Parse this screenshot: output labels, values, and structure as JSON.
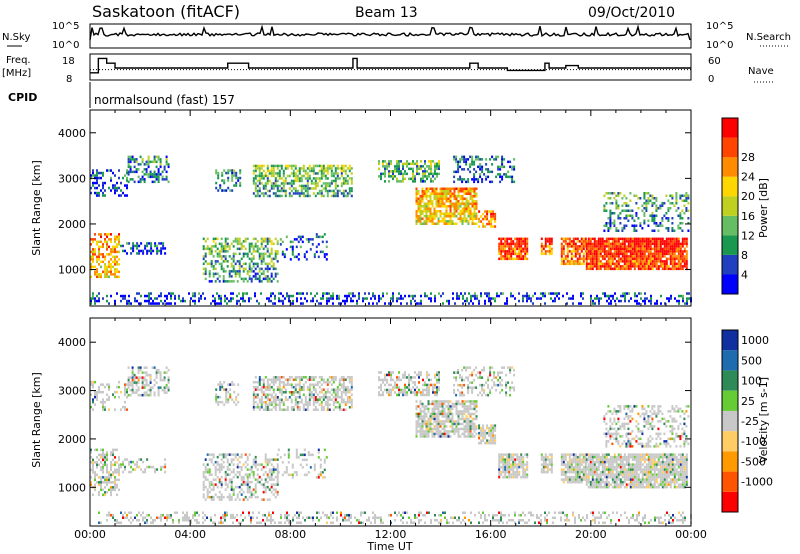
{
  "header": {
    "station": "Saskatoon (fitACF)",
    "beam": "Beam 13",
    "date": "09/Oct/2010"
  },
  "status_panels": {
    "nsky": {
      "label": "N.Sky",
      "ticks": [
        "10^5",
        "10^0"
      ]
    },
    "nsearch": {
      "label": "N.Search",
      "ticks": [
        "10^5",
        "10^0"
      ]
    },
    "freq": {
      "label_line1": "Freq.",
      "label_line2": "[MHz]",
      "ticks": [
        "18",
        "8"
      ]
    },
    "nave": {
      "label": "Nave",
      "ticks": [
        "60",
        "0"
      ]
    },
    "cpid": {
      "label": "CPID",
      "value": "normalsound (fast) 157"
    }
  },
  "colors": {
    "power": [
      "#0000ff",
      "#2040c0",
      "#1a9850",
      "#66bd63",
      "#c0d020",
      "#ffd700",
      "#ff8c00",
      "#ff4500",
      "#ff0000"
    ],
    "velocity": [
      "#ff0000",
      "#ff5500",
      "#ff9900",
      "#ffcc66",
      "#c8c8c8",
      "#66cc33",
      "#2e8b57",
      "#1e6bb0",
      "#1030a0"
    ]
  },
  "chart_data": [
    {
      "type": "line",
      "title": "Freq. [MHz] / Nave",
      "x": [
        "00:00",
        "00:20",
        "00:40",
        "01:00",
        "05:20",
        "05:30",
        "06:20",
        "10:20",
        "10:30",
        "10:40",
        "15:00",
        "15:10",
        "15:30",
        "16:20",
        "16:40",
        "18:10",
        "18:20",
        "19:00",
        "19:30",
        "23:50"
      ],
      "series": [
        {
          "name": "Freq.",
          "values": [
            11,
            17,
            15,
            13,
            13,
            15,
            13,
            13,
            17,
            13,
            13,
            15,
            13,
            13,
            12,
            15,
            13,
            14,
            13,
            13
          ]
        },
        {
          "name": "Nave",
          "values": [
            26,
            26,
            26,
            26,
            26,
            26,
            26,
            26,
            26,
            26,
            26,
            26,
            26,
            26,
            26,
            26,
            26,
            26,
            26,
            26
          ]
        }
      ],
      "ylim": [
        8,
        18
      ]
    },
    {
      "type": "heatmap",
      "title": "Power [dB]",
      "xlabel": "Time UT",
      "ylabel": "Slant Range [km]",
      "x_ticks": [
        "00:00",
        "04:00",
        "08:00",
        "12:00",
        "16:00",
        "20:00",
        "00:00"
      ],
      "y_ticks": [
        1000,
        2000,
        3000,
        4000
      ],
      "ylim": [
        200,
        4500
      ],
      "colorbar_label": "Power [dB]",
      "colorbar_ticks": [
        4,
        8,
        12,
        16,
        20,
        24,
        28
      ]
    },
    {
      "type": "heatmap",
      "title": "Velocity [m s-1]",
      "xlabel": "Time UT",
      "ylabel": "Slant Range [km]",
      "x_ticks": [
        "00:00",
        "04:00",
        "08:00",
        "12:00",
        "16:00",
        "20:00",
        "00:00"
      ],
      "y_ticks": [
        1000,
        2000,
        3000,
        4000
      ],
      "ylim": [
        200,
        4500
      ],
      "colorbar_label": "Velocity [m s-1]",
      "colorbar_ticks": [
        "1000",
        "500",
        "100",
        "25",
        "-25",
        "-100",
        "-500",
        "-1000"
      ]
    }
  ]
}
